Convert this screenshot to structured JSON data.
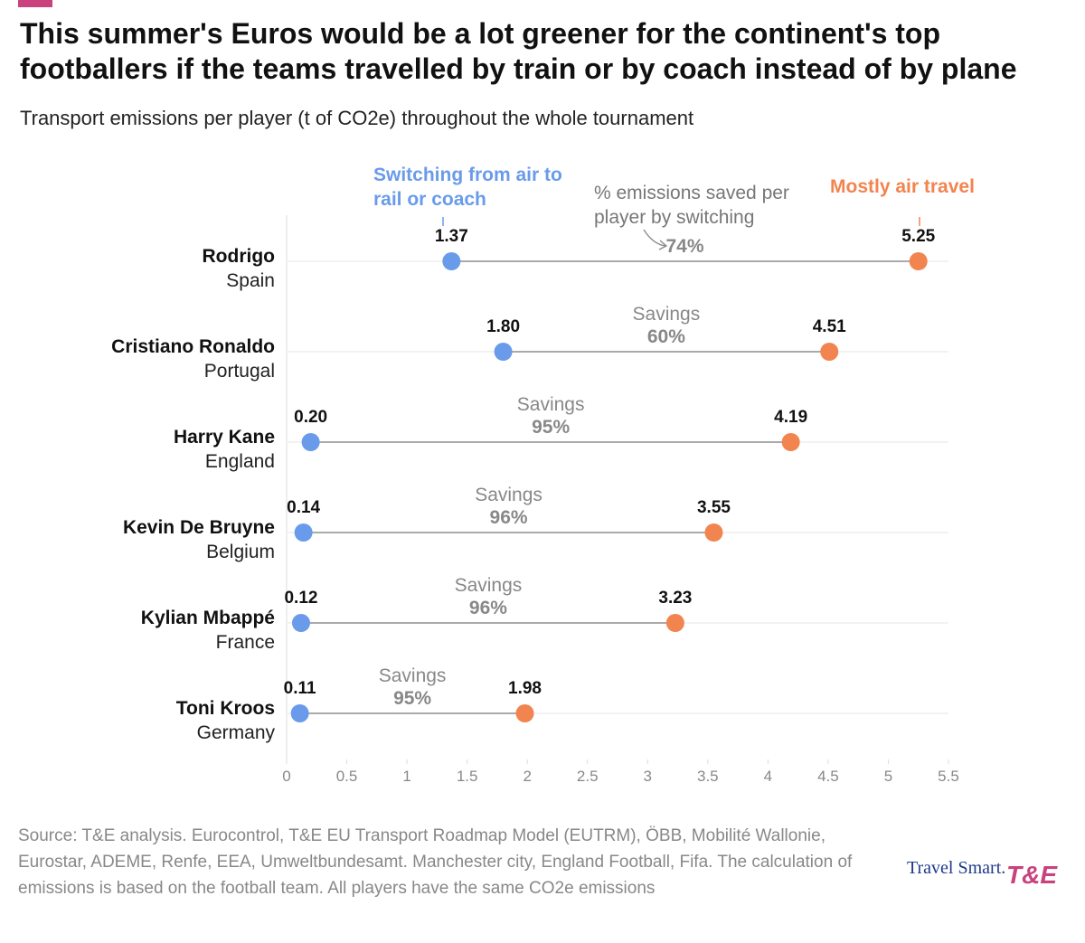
{
  "chart_data": {
    "type": "dumbbell",
    "title": "This summer's Euros would be a lot greener for the continent's top footballers if the teams travelled by train or by coach instead of by plane",
    "subtitle": "Transport emissions per player (t of CO2e) throughout the whole tournament",
    "annotation": "% emissions saved per player by switching",
    "categories": [
      "Rodrigo",
      "Cristiano Ronaldo",
      "Harry Kane",
      "Kevin De Bruyne",
      "Kylian Mbappé",
      "Toni Kroos"
    ],
    "countries": [
      "Spain",
      "Portugal",
      "England",
      "Belgium",
      "France",
      "Germany"
    ],
    "series": [
      {
        "name": "Switching from air to rail or coach",
        "color": "#6a9bea",
        "values": [
          1.37,
          1.8,
          0.2,
          0.14,
          0.12,
          0.11
        ],
        "value_labels": [
          "1.37",
          "1.80",
          "0.20",
          "0.14",
          "0.12",
          "0.11"
        ]
      },
      {
        "name": "Mostly air travel",
        "color": "#f2844f",
        "values": [
          5.25,
          4.51,
          4.19,
          3.55,
          3.23,
          1.98
        ],
        "value_labels": [
          "5.25",
          "4.51",
          "4.19",
          "3.55",
          "3.23",
          "1.98"
        ]
      }
    ],
    "savings": {
      "name": "Savings",
      "values": [
        74,
        60,
        95,
        96,
        96,
        95
      ],
      "value_labels": [
        "74%",
        "60%",
        "95%",
        "96%",
        "96%",
        "95%"
      ]
    },
    "xlim": [
      0,
      5.5
    ],
    "xticks": [
      0,
      0.5,
      1,
      1.5,
      2,
      2.5,
      3,
      3.5,
      4,
      4.5,
      5,
      5.5
    ],
    "grid": true,
    "source": "Source: T&E analysis. Eurocontrol, T&E EU Transport Roadmap Model (EUTRM), ÖBB, Mobilité Wallonie, Eurostar, ADEME, Renfe, EEA, Umweltbundesamt. Manchester city, England Football, Fifa. The calculation of emissions is based on the football team. All players have the same CO2e emissions",
    "logos": [
      "Travel Smart.",
      "T&E"
    ]
  }
}
